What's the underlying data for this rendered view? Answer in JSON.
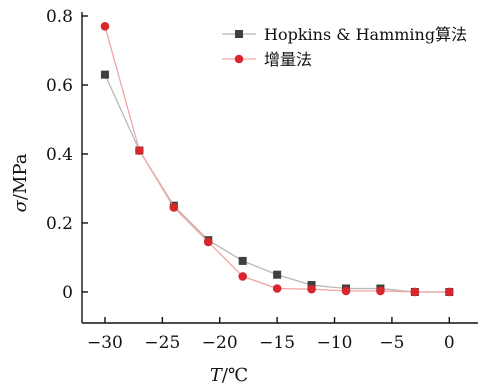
{
  "chart_data": {
    "type": "line",
    "title": "",
    "xlabel_italic": "T",
    "xlabel_unit": "/℃",
    "ylabel_italic": "σ",
    "ylabel_unit": "/MPa",
    "xlim": [
      -32,
      2.5
    ],
    "ylim": [
      -0.09,
      0.8
    ],
    "x_ticks": [
      -30,
      -25,
      -20,
      -15,
      -10,
      -5,
      0
    ],
    "x_tick_labels": [
      "−30",
      "−25",
      "−20",
      "−15",
      "−10",
      "−5",
      "0"
    ],
    "y_ticks": [
      0,
      0.2,
      0.4,
      0.6,
      0.8
    ],
    "y_tick_labels": [
      "0",
      "0.2",
      "0.4",
      "0.6",
      "0.8"
    ],
    "grid": false,
    "legend_position": "top-right",
    "x": [
      -30,
      -27,
      -24,
      -21,
      -18,
      -15,
      -12,
      -9,
      -6,
      -3,
      0
    ],
    "series": [
      {
        "name": "Hopkins & Hamming算法",
        "marker": "square",
        "marker_color": "#3f3f3f",
        "line_color": "#b8b8b8",
        "values": [
          0.63,
          0.41,
          0.25,
          0.15,
          0.09,
          0.05,
          0.02,
          0.01,
          0.01,
          0.0,
          0.0
        ]
      },
      {
        "name": "增量法",
        "marker": "circle",
        "marker_color": "#d9262c",
        "line_color": "#f2a6a6",
        "values": [
          0.77,
          0.41,
          0.245,
          0.145,
          0.045,
          0.01,
          0.008,
          0.003,
          0.003,
          0.0,
          0.0
        ]
      }
    ]
  }
}
